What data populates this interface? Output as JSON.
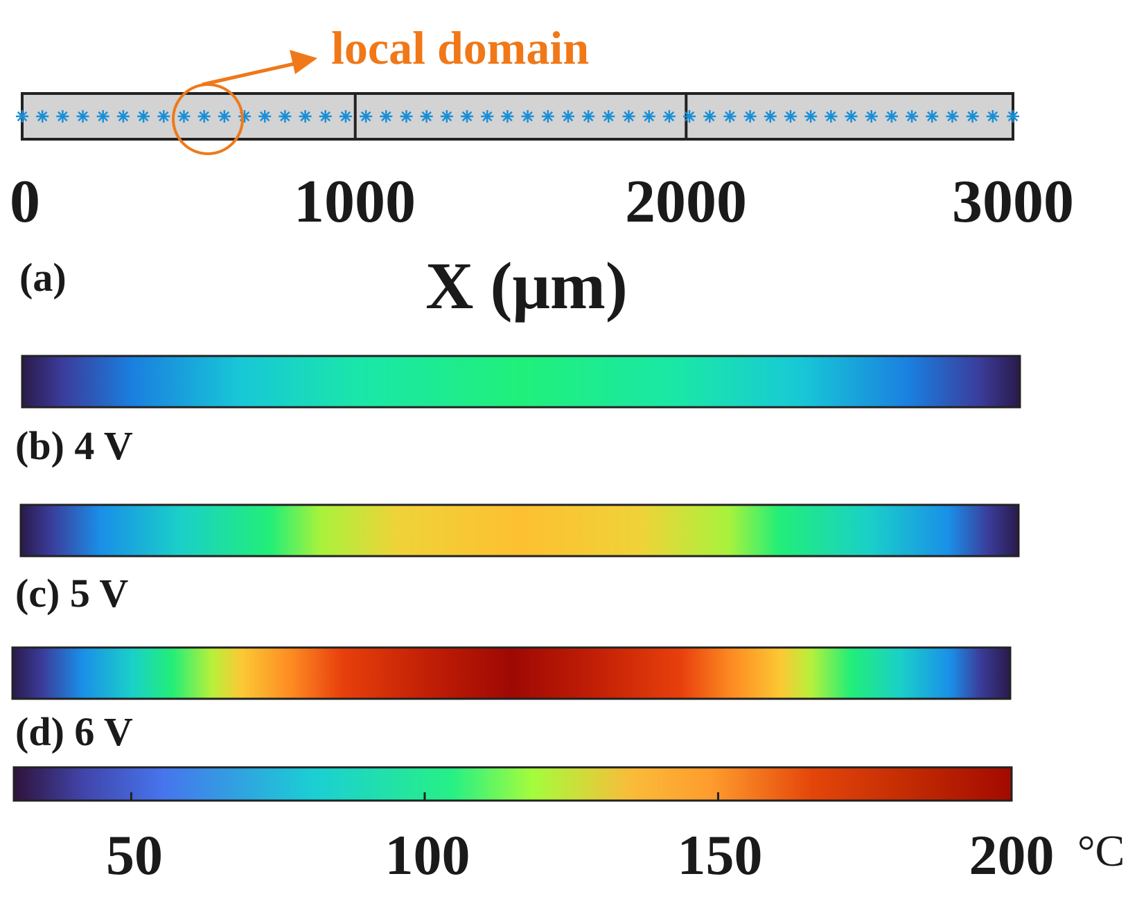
{
  "figure": {
    "annotation": {
      "text": "local domain",
      "color": "#f07818"
    },
    "panel_a": {
      "label": "(a)",
      "x_axis": {
        "label": "X (μm)",
        "range": [
          0,
          3000
        ],
        "ticks": [
          "0",
          "1000",
          "2000",
          "3000"
        ]
      },
      "segments": [
        [
          0,
          1000
        ],
        [
          1000,
          2000
        ],
        [
          2000,
          3000
        ]
      ],
      "node_count": 50,
      "node_color": "#1a8fd6",
      "bar_fill": "#d3d3d3",
      "local_domain_center_x": 560
    },
    "heat_strips": [
      {
        "label": "(b) 4 V",
        "peak_celsius": 100
      },
      {
        "label": "(c) 5 V",
        "peak_celsius": 140
      },
      {
        "label": "(d) 6 V",
        "peak_celsius": 200
      }
    ],
    "colorbar": {
      "range": [
        30,
        200
      ],
      "ticks": [
        "50",
        "100",
        "150",
        "200"
      ],
      "tick_values": [
        50,
        100,
        150,
        200
      ],
      "unit": "°C",
      "colormap": [
        "#30123b",
        "#4145ab",
        "#4675ed",
        "#1bcfd4",
        "#27f085",
        "#a4fc3c",
        "#fabb39",
        "#fe9b2d",
        "#e4460a",
        "#c12a03",
        "#a30a00",
        "#7a0403"
      ]
    }
  }
}
